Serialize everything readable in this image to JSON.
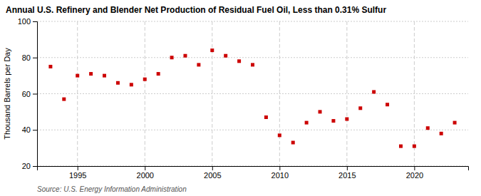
{
  "chart_data": {
    "type": "scatter",
    "title": "Annual U.S. Refinery and Blender Net Production of Residual Fuel Oil, Less than 0.31% Sulfur",
    "ylabel": "Thousand Barrels per Day",
    "annotations": [
      "Source: U.S. Energy Information Administration"
    ],
    "x": [
      1993,
      1994,
      1995,
      1996,
      1997,
      1998,
      1999,
      2000,
      2001,
      2002,
      2003,
      2004,
      2005,
      2006,
      2007,
      2008,
      2009,
      2010,
      2011,
      2012,
      2013,
      2014,
      2015,
      2016,
      2017,
      2018,
      2019,
      2020,
      2021,
      2022,
      2023
    ],
    "values": [
      75,
      57,
      70,
      71,
      70,
      66,
      65,
      68,
      71,
      80,
      81,
      76,
      84,
      81,
      78,
      76,
      47,
      37,
      33,
      44,
      50,
      45,
      46,
      52,
      61,
      54,
      31,
      31,
      41,
      38,
      44
    ],
    "color": "#cc0000",
    "marker": "square",
    "xlim": [
      1992,
      2024
    ],
    "ylim": [
      20,
      100
    ],
    "xticks": [
      1995,
      2000,
      2005,
      2010,
      2015,
      2020
    ],
    "yticks": [
      20,
      40,
      60,
      80,
      100
    ],
    "grid": true
  }
}
